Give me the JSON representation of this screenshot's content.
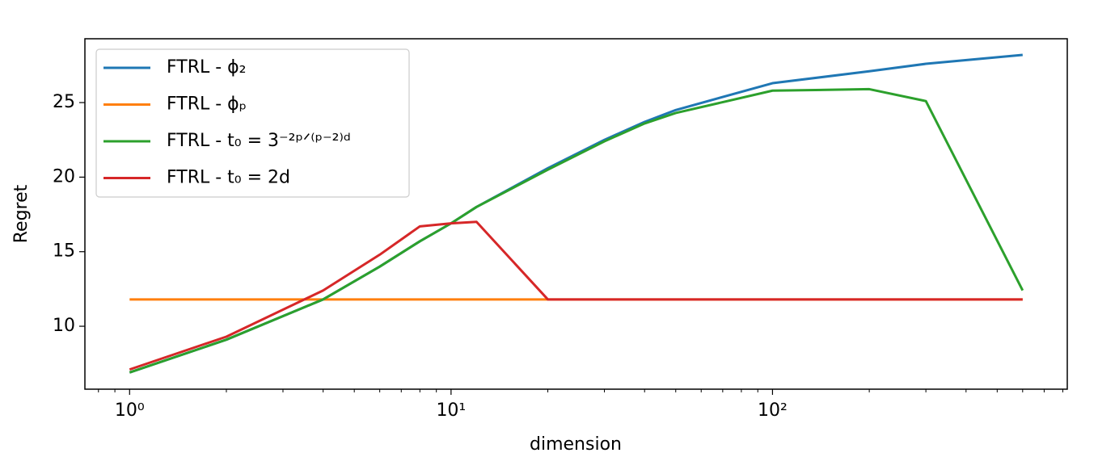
{
  "chart_data": {
    "type": "line",
    "xlabel": "dimension",
    "ylabel": "Regret",
    "x": [
      1,
      2,
      4,
      6,
      8,
      10,
      12,
      20,
      30,
      40,
      50,
      100,
      200,
      300,
      600
    ],
    "xscale": "log",
    "xlim": [
      0.726,
      826
    ],
    "ylim": [
      5.78,
      29.28
    ],
    "xticks": [
      {
        "value": 1,
        "label": "10⁰"
      },
      {
        "value": 10,
        "label": "10¹"
      },
      {
        "value": 100,
        "label": "10²"
      }
    ],
    "yticks": [
      10,
      15,
      20,
      25
    ],
    "legend": "upper left",
    "series": [
      {
        "name": "FTRL - ϕ₂",
        "color": "#1f77b4",
        "values": [
          6.9,
          9.1,
          11.8,
          14.0,
          15.7,
          16.9,
          18.0,
          20.6,
          22.5,
          23.7,
          24.5,
          26.3,
          27.1,
          27.6,
          28.2
        ]
      },
      {
        "name": "FTRL - ϕₚ",
        "color": "#ff7f0e",
        "values": [
          11.8,
          11.8,
          11.8,
          11.8,
          11.8,
          11.8,
          11.8,
          11.8,
          11.8,
          11.8,
          11.8,
          11.8,
          11.8,
          11.8,
          11.8
        ]
      },
      {
        "name": "FTRL - t₀ = 3⁻²ᵖᐟ⁽ᵖ⁻²⁾ᵈ",
        "color": "#2ca02c",
        "values": [
          6.9,
          9.1,
          11.8,
          14.0,
          15.7,
          16.9,
          18.0,
          20.5,
          22.4,
          23.6,
          24.3,
          25.8,
          25.9,
          25.1,
          12.4
        ]
      },
      {
        "name": "FTRL - t₀ = 2d",
        "color": "#d62728",
        "values": [
          7.1,
          9.3,
          12.4,
          14.8,
          16.7,
          16.9,
          17.0,
          11.8,
          11.8,
          11.8,
          11.8,
          11.8,
          11.8,
          11.8,
          11.8
        ]
      }
    ]
  }
}
